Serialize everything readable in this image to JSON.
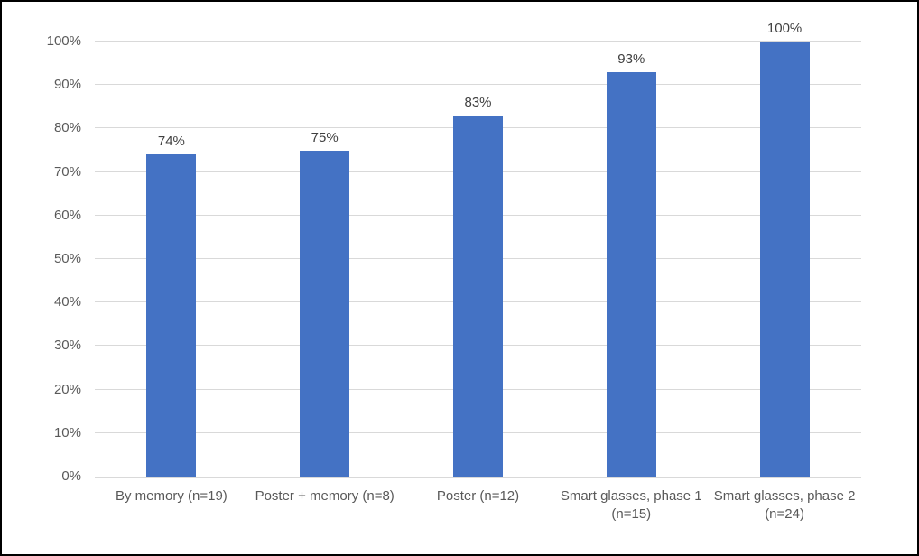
{
  "chart_data": {
    "type": "bar",
    "title": "",
    "xlabel": "",
    "ylabel": "",
    "categories": [
      "By memory (n=19)",
      "Poster + memory (n=8)",
      "Poster (n=12)",
      "Smart glasses, phase 1 (n=15)",
      "Smart glasses, phase 2 (n=24)"
    ],
    "values": [
      74,
      75,
      83,
      93,
      100
    ],
    "data_labels": [
      "74%",
      "75%",
      "83%",
      "93%",
      "100%"
    ],
    "ylim": [
      0,
      100
    ],
    "ytick_step": 10,
    "ytick_labels": [
      "0%",
      "10%",
      "20%",
      "30%",
      "40%",
      "50%",
      "60%",
      "70%",
      "80%",
      "90%",
      "100%"
    ],
    "grid": true,
    "legend_position": "none",
    "colors": {
      "bar": "#4472C4",
      "gridline": "#D9D9D9",
      "axis_line": "#D9D9D9",
      "axis_tick_label": "#595959",
      "data_label": "#404040",
      "frame_border": "#000000",
      "background": "#FFFFFF"
    }
  }
}
